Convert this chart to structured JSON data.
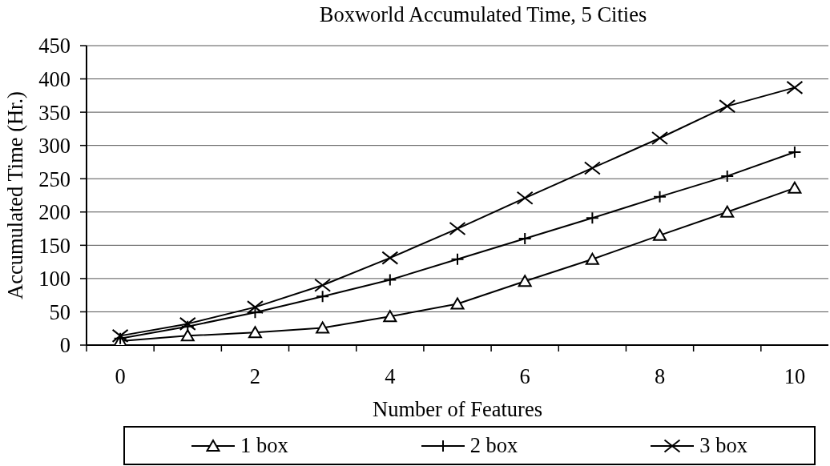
{
  "chart_data": {
    "type": "line",
    "title": "Boxworld Accumulated Time, 5 Cities",
    "xlabel": "Number of Features",
    "ylabel": "Accumulated Time (Hr.)",
    "categories": [
      "0",
      null,
      "2",
      null,
      "4",
      null,
      "6",
      null,
      "8",
      null,
      "10"
    ],
    "series": [
      {
        "name": "1 box",
        "color": "#000000",
        "marker": "triangle",
        "values": [
          6,
          14,
          19,
          26,
          43,
          62,
          96,
          129,
          165,
          200,
          236
        ]
      },
      {
        "name": "2 box",
        "color": "#000000",
        "marker": "plus",
        "values": [
          10,
          28,
          49,
          73,
          98,
          129,
          160,
          191,
          223,
          254,
          290
        ]
      },
      {
        "name": "3 box",
        "color": "#000000",
        "marker": "cross",
        "values": [
          14,
          32,
          57,
          90,
          131,
          175,
          221,
          266,
          311,
          359,
          387
        ]
      }
    ],
    "ylim": [
      0,
      450
    ],
    "yticks": [
      0,
      50,
      100,
      150,
      200,
      250,
      300,
      350,
      400,
      450
    ],
    "grid": "y",
    "legend": "bottom",
    "line_style": "solid"
  }
}
